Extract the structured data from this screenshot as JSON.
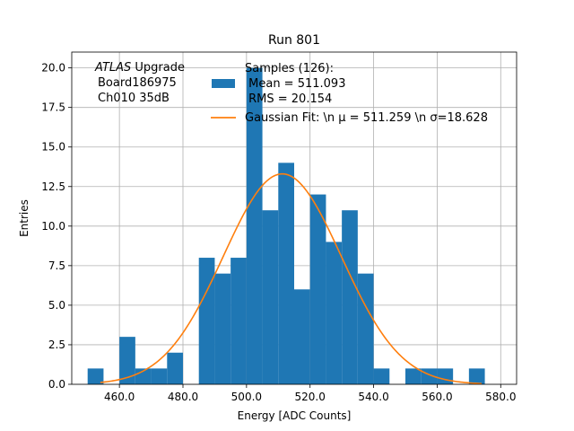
{
  "chart_data": {
    "type": "bar",
    "title": "Run 801",
    "xlabel": "Energy [ADC Counts]",
    "ylabel": "Entries",
    "xlim": [
      445,
      585
    ],
    "ylim": [
      0,
      21
    ],
    "x_ticks": [
      460,
      480,
      500,
      520,
      540,
      560,
      580
    ],
    "x_tick_labels": [
      "460.0",
      "480.0",
      "500.0",
      "520.0",
      "540.0",
      "560.0",
      "580.0"
    ],
    "y_ticks": [
      0,
      2.5,
      5,
      7.5,
      10,
      12.5,
      15,
      17.5,
      20
    ],
    "y_tick_labels": [
      "0.0",
      "2.5",
      "5.0",
      "7.5",
      "10.0",
      "12.5",
      "15.0",
      "17.5",
      "20.0"
    ],
    "grid": true,
    "bin_edges": [
      450,
      455,
      460,
      465,
      470,
      475,
      480,
      485,
      490,
      495,
      500,
      505,
      510,
      515,
      520,
      525,
      530,
      535,
      540,
      545,
      550,
      555,
      560,
      565,
      570,
      575
    ],
    "counts": [
      1,
      0,
      3,
      1,
      1,
      2,
      0,
      8,
      7,
      8,
      20,
      11,
      14,
      6,
      12,
      9,
      11,
      7,
      1,
      0,
      1,
      1,
      1,
      0,
      1
    ],
    "bar_color": "#1f77b4",
    "fit": {
      "mean": 511.259,
      "sigma": 18.628,
      "amplitude": 13.3,
      "x_range": [
        454,
        574
      ],
      "color": "#ff7f0e"
    },
    "annotation": {
      "italic": "ATLAS",
      "rest": " Upgrade",
      "line2": "Board186975",
      "line3": "Ch010 35dB"
    },
    "legend": {
      "placement": "top-right",
      "entries": [
        {
          "label_lines": [
            "Samples (126):",
            " Mean = 511.093",
            " RMS = 20.154"
          ],
          "kind": "patch",
          "color": "#1f77b4"
        },
        {
          "label_lines": [
            "Gaussian Fit: \\n μ = 511.259 \\n σ=18.628"
          ],
          "kind": "line",
          "color": "#ff7f0e"
        }
      ]
    }
  }
}
